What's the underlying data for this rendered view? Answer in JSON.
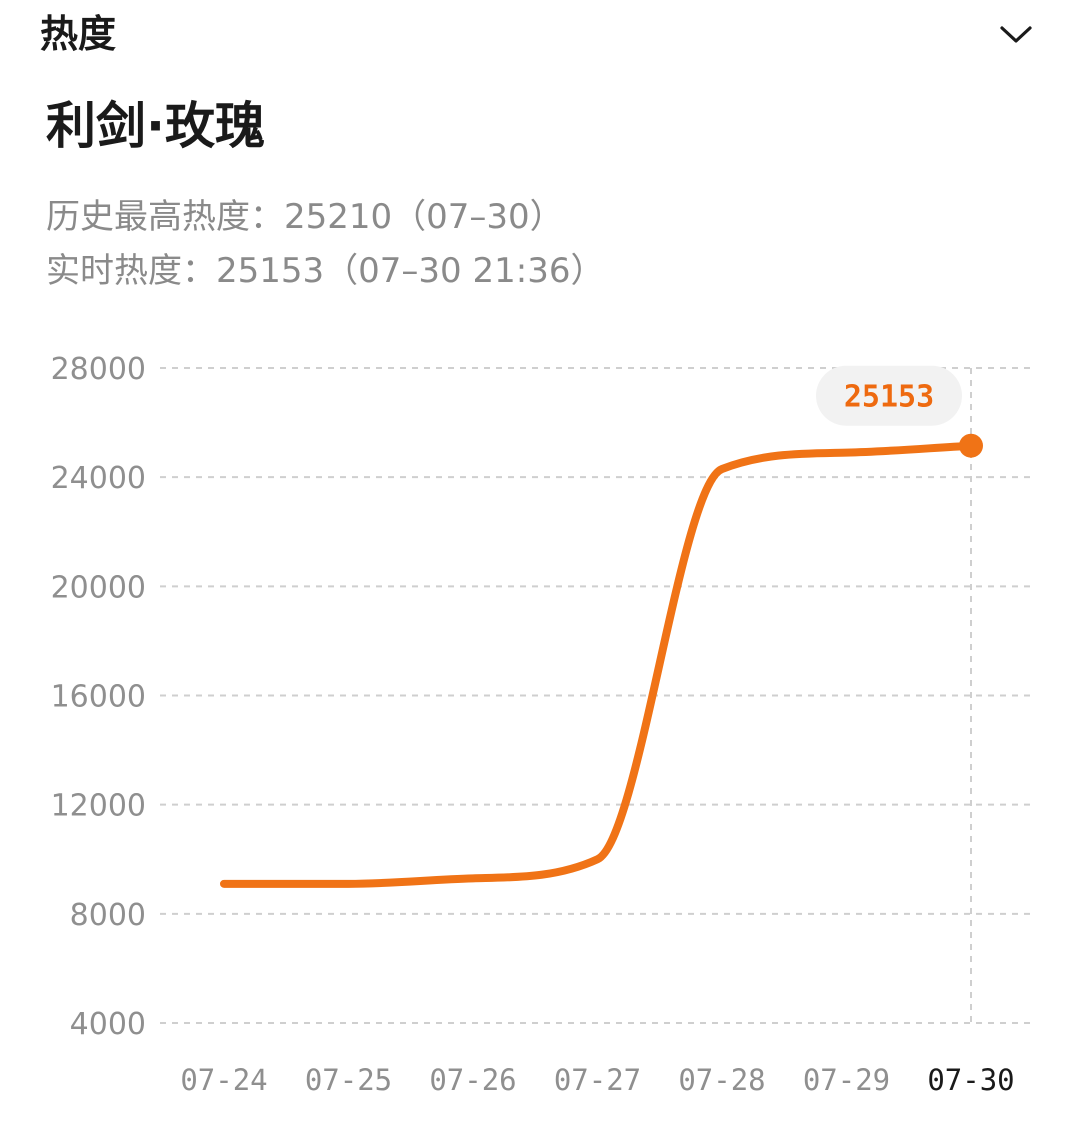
{
  "section": {
    "title": "热度",
    "toggle_icon": "chevron-down-icon"
  },
  "show": {
    "title": "利剑·玫瑰"
  },
  "stats": {
    "peak_line": "历史最高热度：25210（07–30）",
    "live_line": "实时热度：25153（07–30 21:36）"
  },
  "colors": {
    "accent": "#f07316",
    "label_text": "#ee6a10",
    "label_bg": "#f2f2f2",
    "grid": "#cfcfcf",
    "axis_text": "#8f8f8f"
  },
  "chart_data": {
    "type": "line",
    "title": "",
    "xlabel": "",
    "ylabel": "",
    "categories": [
      "07-24",
      "07-25",
      "07-26",
      "07-27",
      "07-28",
      "07-29",
      "07-30"
    ],
    "yticks": [
      4000,
      8000,
      12000,
      16000,
      20000,
      24000,
      28000
    ],
    "ylim": [
      4000,
      28000
    ],
    "grid": true,
    "highlighted_category": "07-30",
    "series": [
      {
        "values": [
          9100,
          9100,
          9300,
          10000,
          24300,
          24900,
          25153
        ]
      }
    ],
    "annotations": [
      {
        "category": "07-30",
        "label": "25153"
      }
    ]
  }
}
